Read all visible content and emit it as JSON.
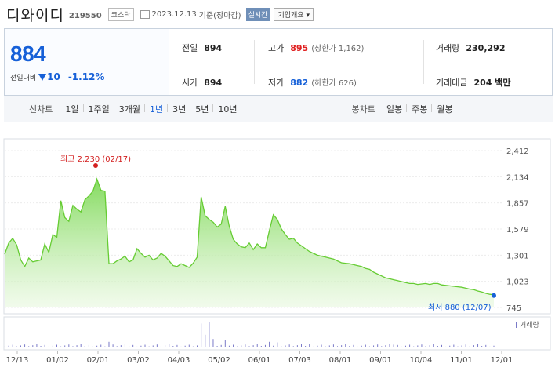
{
  "header": {
    "name": "디와이디",
    "code": "219550",
    "market": "코스닥",
    "date": "2023.12.13",
    "basis": "기준(장마감)",
    "realtime": "실시간",
    "company_info": "기업개요"
  },
  "quote": {
    "price": "884",
    "diff_label": "전일대비",
    "diff": "10",
    "rate": "-1.12%",
    "prev_label": "전일",
    "prev": "894",
    "open_label": "시가",
    "open": "894",
    "high_label": "고가",
    "high": "895",
    "upper_limit": "(상한가 1,162)",
    "low_label": "저가",
    "low": "882",
    "lower_limit": "(하한가 626)",
    "volume_label": "거래량",
    "volume": "230,292",
    "amount_label": "거래대금",
    "amount": "204 백만"
  },
  "period_bar": {
    "line_chart_label": "선차트",
    "periods": [
      "1일",
      "1주일",
      "3개월",
      "1년",
      "3년",
      "5년",
      "10년"
    ],
    "active": "1년",
    "candle_chart_label": "봉차트",
    "candles": [
      "일봉",
      "주봉",
      "월봉"
    ]
  },
  "chart_data": {
    "type": "area",
    "y_ticks": [
      "2,412",
      "2,134",
      "1,857",
      "1,579",
      "1,301",
      "1,023",
      "745"
    ],
    "ylim": [
      745,
      2412
    ],
    "x_labels": [
      "12/13",
      "01/02",
      "02/01",
      "03/02",
      "04/03",
      "05/02",
      "06/01",
      "07/03",
      "08/01",
      "09/01",
      "10/04",
      "11/01",
      "12/01"
    ],
    "high_annotation": "최고 2,230 (02/17)",
    "low_annotation": "최저 880 (12/07)",
    "volume_legend": "거래량",
    "colors": {
      "line": "#66cc33",
      "fill_top": "#7ed957",
      "high": "#d32020",
      "low": "#1660d8",
      "volume": "#7a7ac8"
    },
    "price_series": [
      1310,
      1430,
      1480,
      1410,
      1250,
      1180,
      1270,
      1230,
      1240,
      1250,
      1420,
      1330,
      1520,
      1490,
      1880,
      1700,
      1660,
      1830,
      1790,
      1760,
      1890,
      1930,
      1980,
      2110,
      1990,
      1980,
      1210,
      1210,
      1240,
      1260,
      1290,
      1230,
      1250,
      1370,
      1320,
      1280,
      1300,
      1250,
      1270,
      1320,
      1290,
      1240,
      1190,
      1180,
      1210,
      1190,
      1170,
      1215,
      1280,
      1920,
      1720,
      1680,
      1650,
      1600,
      1630,
      1820,
      1610,
      1470,
      1420,
      1390,
      1380,
      1430,
      1360,
      1420,
      1380,
      1380,
      1560,
      1730,
      1680,
      1580,
      1520,
      1470,
      1480,
      1430,
      1400,
      1370,
      1340,
      1320,
      1300,
      1290,
      1280,
      1270,
      1260,
      1240,
      1220,
      1215,
      1210,
      1200,
      1190,
      1180,
      1160,
      1150,
      1120,
      1100,
      1080,
      1060,
      1050,
      1040,
      1030,
      1020,
      1010,
      1000,
      1000,
      990,
      995,
      1000,
      990,
      1000,
      1000,
      985,
      980,
      975,
      970,
      965,
      960,
      950,
      940,
      935,
      920,
      910,
      895,
      885,
      880
    ]
  }
}
